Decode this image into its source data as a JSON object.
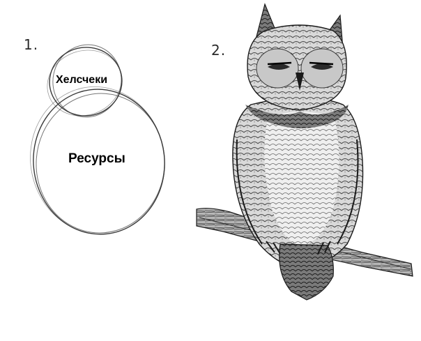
{
  "steps": {
    "first_label": "1.",
    "second_label": "2."
  },
  "sketch": {
    "head_caption": "Хелсчеки",
    "body_caption": "Ресурсы"
  },
  "illustration": {
    "subject_icon": "owl-drawing"
  },
  "colors": {
    "background": "#ffffff",
    "pencil": "#3a3a3a",
    "ink": "#1a1a1a"
  }
}
